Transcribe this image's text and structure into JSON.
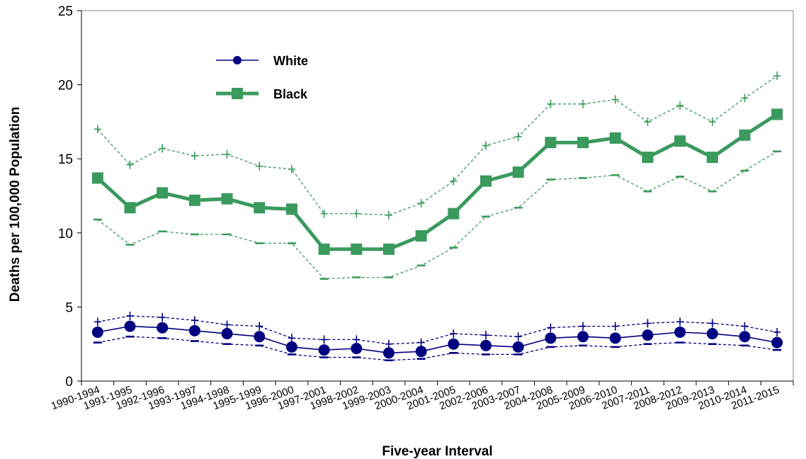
{
  "chart_data": {
    "type": "line",
    "title": "",
    "xlabel": "Five-year Interval",
    "ylabel": "Deaths per 100,000 Population",
    "ylim": [
      0,
      25
    ],
    "yticks": [
      0,
      5,
      10,
      15,
      20,
      25
    ],
    "grid": false,
    "legend_position": "top-left",
    "categories": [
      "1990-1994",
      "1991-1995",
      "1992-1996",
      "1993-1997",
      "1994-1998",
      "1995-1999",
      "1996-2000",
      "1997-2001",
      "1998-2002",
      "1999-2003",
      "2000-2004",
      "2001-2005",
      "2002-2006",
      "2003-2007",
      "2004-2008",
      "2005-2009",
      "2006-2010",
      "2007-2011",
      "2008-2012",
      "2009-2013",
      "2010-2014",
      "2011-2015"
    ],
    "series": [
      {
        "name": "White",
        "color": "#000080",
        "values": [
          3.3,
          3.7,
          3.6,
          3.4,
          3.2,
          3.0,
          2.3,
          2.1,
          2.2,
          1.9,
          2.0,
          2.5,
          2.4,
          2.3,
          2.9,
          3.0,
          2.9,
          3.1,
          3.3,
          3.2,
          3.0,
          2.6
        ],
        "upper": [
          4.0,
          4.4,
          4.3,
          4.1,
          3.8,
          3.7,
          2.9,
          2.8,
          2.8,
          2.5,
          2.6,
          3.2,
          3.1,
          3.0,
          3.6,
          3.7,
          3.7,
          3.9,
          4.0,
          3.9,
          3.7,
          3.3
        ],
        "lower": [
          2.6,
          3.0,
          2.9,
          2.7,
          2.5,
          2.4,
          1.8,
          1.6,
          1.6,
          1.4,
          1.5,
          1.9,
          1.8,
          1.8,
          2.3,
          2.4,
          2.3,
          2.5,
          2.6,
          2.5,
          2.4,
          2.1
        ]
      },
      {
        "name": "Black",
        "color": "#3a9a5e",
        "values": [
          13.7,
          11.7,
          12.7,
          12.2,
          12.3,
          11.7,
          11.6,
          8.9,
          8.9,
          8.9,
          9.8,
          11.3,
          13.5,
          14.1,
          16.1,
          16.1,
          16.4,
          15.1,
          16.2,
          15.1,
          16.6,
          18.0
        ],
        "upper": [
          17.0,
          14.6,
          15.7,
          15.2,
          15.3,
          14.5,
          14.3,
          11.3,
          11.3,
          11.2,
          12.0,
          13.5,
          15.9,
          16.5,
          18.7,
          18.7,
          19.0,
          17.5,
          18.6,
          17.5,
          19.1,
          20.6
        ],
        "lower": [
          10.9,
          9.2,
          10.1,
          9.9,
          9.9,
          9.3,
          9.3,
          6.9,
          7.0,
          7.0,
          7.8,
          9.0,
          11.1,
          11.7,
          13.6,
          13.7,
          13.9,
          12.8,
          13.8,
          12.8,
          14.2,
          15.5
        ]
      }
    ]
  }
}
